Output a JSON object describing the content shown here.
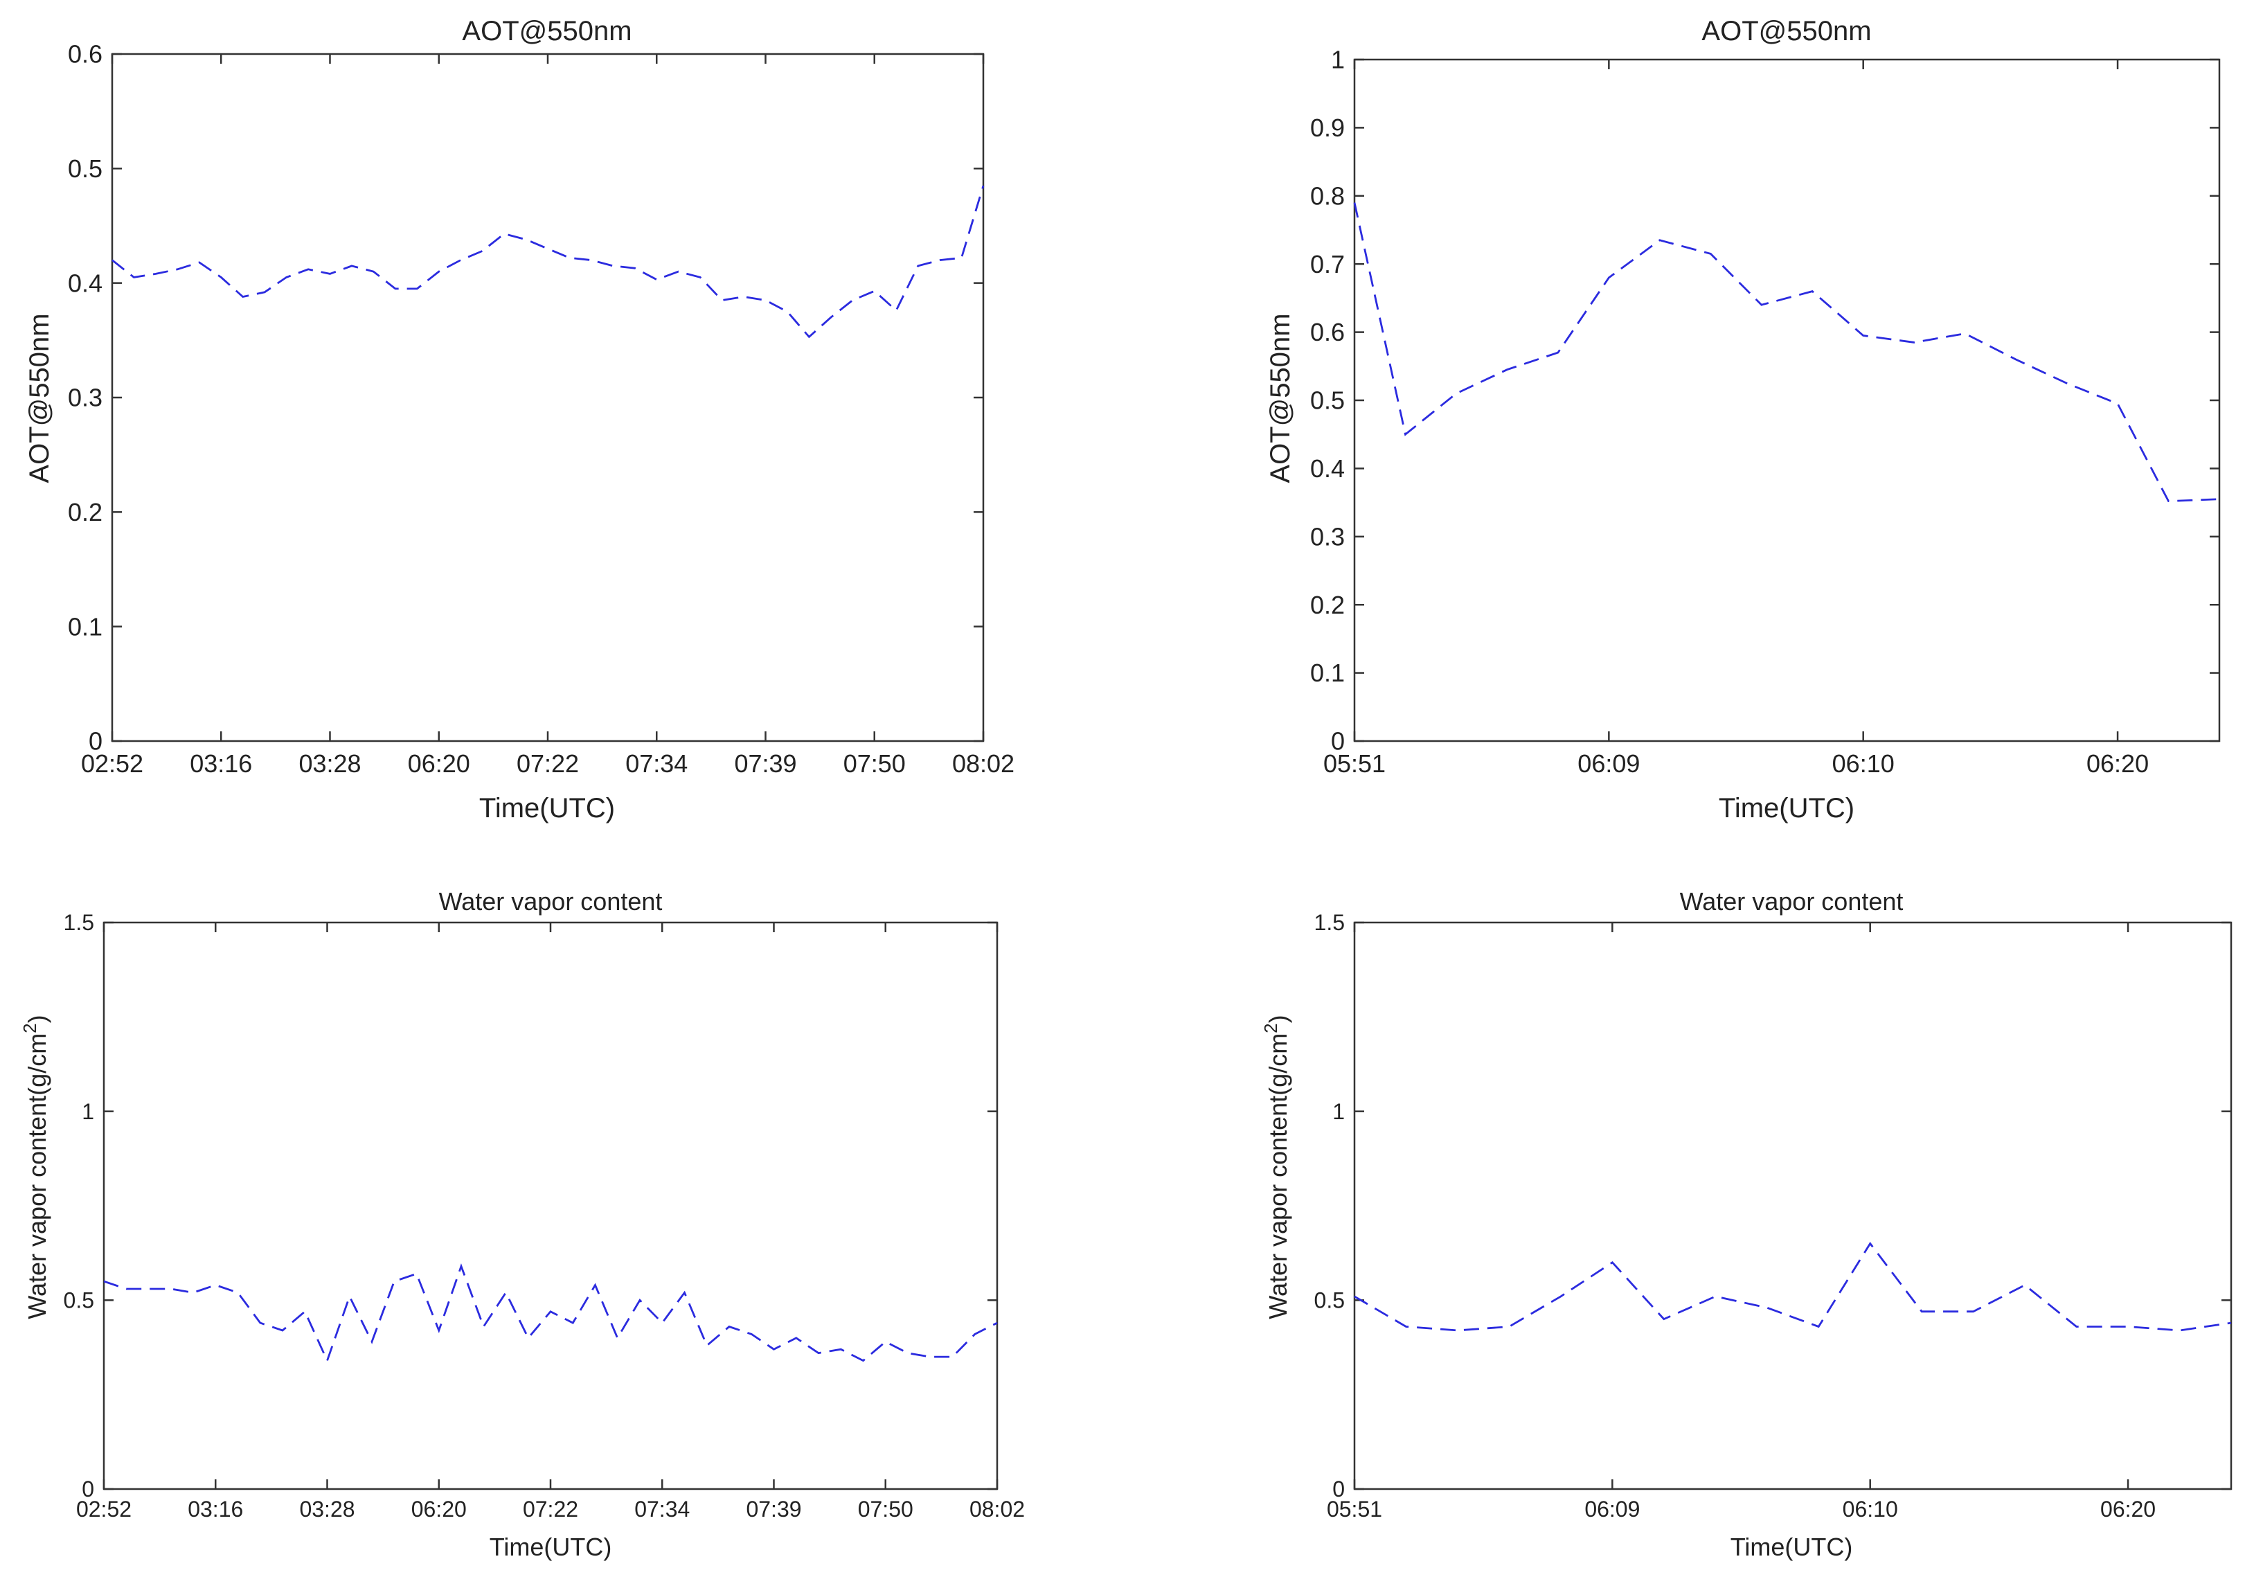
{
  "chart_data": [
    {
      "type": "line",
      "title": "AOT@550nm",
      "xlabel": "Time(UTC)",
      "ylabel": "AOT@550nm",
      "ylabel_sup": "",
      "ylabel_end": "",
      "ylim": [
        0,
        0.6
      ],
      "yticks": [
        0,
        0.1,
        0.2,
        0.3,
        0.4,
        0.5,
        0.6
      ],
      "ytick_labels": [
        "0",
        "0.1",
        "0.2",
        "0.3",
        "0.4",
        "0.5",
        "0.6"
      ],
      "xlim": [
        0,
        40
      ],
      "xticks": [
        0,
        5,
        10,
        15,
        20,
        25,
        30,
        35,
        40
      ],
      "xtick_labels": [
        "02:52",
        "03:16",
        "03:28",
        "06:20",
        "07:22",
        "07:34",
        "07:39",
        "07:50",
        "08:02"
      ],
      "grid": false,
      "color": "#2b2bdf",
      "series": [
        {
          "name": "AOT@550nm",
          "x": [
            0,
            1,
            2,
            3,
            4,
            5,
            6,
            7,
            8,
            9,
            10,
            11,
            12,
            13,
            14,
            15,
            16,
            17,
            18,
            19,
            20,
            21,
            22,
            23,
            24,
            25,
            26,
            27,
            28,
            29,
            30,
            31,
            32,
            33,
            34,
            35,
            36,
            37,
            38,
            39,
            40
          ],
          "values": [
            0.42,
            0.405,
            0.408,
            0.412,
            0.418,
            0.405,
            0.388,
            0.392,
            0.405,
            0.412,
            0.408,
            0.415,
            0.41,
            0.395,
            0.395,
            0.41,
            0.42,
            0.428,
            0.443,
            0.438,
            0.43,
            0.422,
            0.42,
            0.415,
            0.413,
            0.403,
            0.41,
            0.405,
            0.385,
            0.388,
            0.385,
            0.375,
            0.353,
            0.37,
            0.385,
            0.393,
            0.376,
            0.415,
            0.42,
            0.422,
            0.485
          ]
        }
      ]
    },
    {
      "type": "line",
      "title": "AOT@550nm",
      "xlabel": "Time(UTC)",
      "ylabel": "AOT@550nm",
      "ylabel_sup": "",
      "ylabel_end": "",
      "ylim": [
        0,
        1
      ],
      "yticks": [
        0,
        0.1,
        0.2,
        0.3,
        0.4,
        0.5,
        0.6,
        0.7,
        0.8,
        0.9,
        1
      ],
      "ytick_labels": [
        "0",
        "0.1",
        "0.2",
        "0.3",
        "0.4",
        "0.5",
        "0.6",
        "0.7",
        "0.8",
        "0.9",
        "1"
      ],
      "xlim": [
        0,
        17
      ],
      "xticks": [
        0,
        5,
        10,
        15
      ],
      "xtick_labels": [
        "05:51",
        "06:09",
        "06:10",
        "06:20"
      ],
      "grid": false,
      "color": "#2b2bdf",
      "series": [
        {
          "name": "AOT@550nm",
          "x": [
            0,
            1,
            2,
            3,
            4,
            5,
            6,
            7,
            8,
            9,
            10,
            11,
            12,
            13,
            14,
            15,
            16,
            17
          ],
          "values": [
            0.79,
            0.45,
            0.51,
            0.545,
            0.57,
            0.68,
            0.735,
            0.715,
            0.64,
            0.66,
            0.595,
            0.585,
            0.598,
            0.56,
            0.525,
            0.495,
            0.352,
            0.355
          ]
        }
      ]
    },
    {
      "type": "line",
      "title": "Water vapor content",
      "xlabel": "Time(UTC)",
      "ylabel": "Water vapor content(g/cm",
      "ylabel_sup": "2",
      "ylabel_end": ")",
      "ylim": [
        0,
        1.5
      ],
      "yticks": [
        0,
        0.5,
        1,
        1.5
      ],
      "ytick_labels": [
        "0",
        "0.5",
        "1",
        "1.5"
      ],
      "xlim": [
        0,
        40
      ],
      "xticks": [
        0,
        5,
        10,
        15,
        20,
        25,
        30,
        35,
        40
      ],
      "xtick_labels": [
        "02:52",
        "03:16",
        "03:28",
        "06:20",
        "07:22",
        "07:34",
        "07:39",
        "07:50",
        "08:02"
      ],
      "grid": false,
      "color": "#2b2bdf",
      "series": [
        {
          "name": "Water vapor content",
          "x": [
            0,
            1,
            2,
            3,
            4,
            5,
            6,
            7,
            8,
            9,
            10,
            11,
            12,
            13,
            14,
            15,
            16,
            17,
            18,
            19,
            20,
            21,
            22,
            23,
            24,
            25,
            26,
            27,
            28,
            29,
            30,
            31,
            32,
            33,
            34,
            35,
            36,
            37,
            38,
            39,
            40
          ],
          "values": [
            0.55,
            0.53,
            0.53,
            0.53,
            0.52,
            0.54,
            0.52,
            0.44,
            0.42,
            0.47,
            0.34,
            0.51,
            0.39,
            0.55,
            0.57,
            0.42,
            0.59,
            0.43,
            0.52,
            0.4,
            0.47,
            0.44,
            0.54,
            0.4,
            0.5,
            0.44,
            0.52,
            0.38,
            0.43,
            0.41,
            0.37,
            0.4,
            0.36,
            0.37,
            0.34,
            0.39,
            0.36,
            0.35,
            0.35,
            0.41,
            0.44
          ]
        }
      ]
    },
    {
      "type": "line",
      "title": "Water vapor content",
      "xlabel": "Time(UTC)",
      "ylabel": "Water vapor content(g/cm",
      "ylabel_sup": "2",
      "ylabel_end": ")",
      "ylim": [
        0,
        1.5
      ],
      "yticks": [
        0,
        0.5,
        1,
        1.5
      ],
      "ytick_labels": [
        "0",
        "0.5",
        "1",
        "1.5"
      ],
      "xlim": [
        0,
        17
      ],
      "xticks": [
        0,
        5,
        10,
        15
      ],
      "xtick_labels": [
        "05:51",
        "06:09",
        "06:10",
        "06:20"
      ],
      "grid": false,
      "color": "#2b2bdf",
      "series": [
        {
          "name": "Water vapor content",
          "x": [
            0,
            1,
            2,
            3,
            4,
            5,
            6,
            7,
            8,
            9,
            10,
            11,
            12,
            13,
            14,
            15,
            16,
            17
          ],
          "values": [
            0.51,
            0.43,
            0.42,
            0.43,
            0.51,
            0.6,
            0.45,
            0.51,
            0.48,
            0.43,
            0.65,
            0.47,
            0.47,
            0.54,
            0.43,
            0.43,
            0.42,
            0.44
          ]
        }
      ]
    }
  ]
}
